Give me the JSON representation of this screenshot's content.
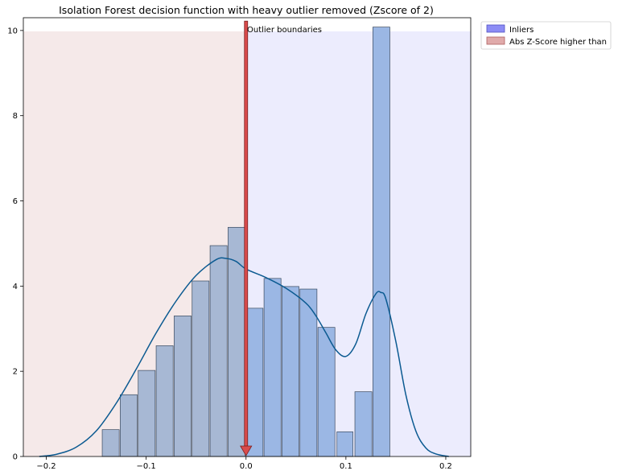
{
  "chart_data": {
    "type": "bar",
    "title": "Isolation Forest decision function with heavy outlier removed (Zscore of 2)",
    "xlabel": "",
    "ylabel": "",
    "xlim": [
      -0.223,
      0.225
    ],
    "ylim": [
      0,
      10.3
    ],
    "xticks": [
      -0.2,
      -0.1,
      0.0,
      0.1,
      0.2
    ],
    "xtick_labels": [
      "−0.2",
      "−0.1",
      "0.0",
      "0.1",
      "0.2"
    ],
    "yticks": [
      0,
      2,
      4,
      6,
      8,
      10
    ],
    "ytick_labels": [
      "0",
      "2",
      "4",
      "6",
      "8",
      "10"
    ],
    "grid": false,
    "legend_position": "outside-top-right",
    "regions": [
      {
        "name": "outlier-region",
        "x0": -0.223,
        "x1": 0.0,
        "color": "#f5e9e9"
      },
      {
        "name": "inlier-region",
        "x0": 0.0,
        "x1": 0.225,
        "color": "#ececfd"
      }
    ],
    "bars": [
      {
        "x0": -0.144,
        "x1": -0.127,
        "value": 0.63,
        "group": "outlier"
      },
      {
        "x0": -0.126,
        "x1": -0.109,
        "value": 1.45,
        "group": "outlier"
      },
      {
        "x0": -0.108,
        "x1": -0.091,
        "value": 2.02,
        "group": "outlier"
      },
      {
        "x0": -0.09,
        "x1": -0.073,
        "value": 2.6,
        "group": "outlier"
      },
      {
        "x0": -0.072,
        "x1": -0.055,
        "value": 3.3,
        "group": "outlier"
      },
      {
        "x0": -0.054,
        "x1": -0.037,
        "value": 4.12,
        "group": "outlier"
      },
      {
        "x0": -0.036,
        "x1": -0.019,
        "value": 4.95,
        "group": "outlier"
      },
      {
        "x0": -0.018,
        "x1": -0.001,
        "value": 5.38,
        "group": "outlier"
      },
      {
        "x0": 0.0,
        "x1": 0.017,
        "value": 3.48,
        "group": "inlier"
      },
      {
        "x0": 0.018,
        "x1": 0.035,
        "value": 4.18,
        "group": "inlier"
      },
      {
        "x0": 0.036,
        "x1": 0.053,
        "value": 3.99,
        "group": "inlier"
      },
      {
        "x0": 0.054,
        "x1": 0.071,
        "value": 3.93,
        "group": "inlier"
      },
      {
        "x0": 0.072,
        "x1": 0.089,
        "value": 3.03,
        "group": "inlier"
      },
      {
        "x0": 0.091,
        "x1": 0.107,
        "value": 0.58,
        "group": "inlier"
      },
      {
        "x0": 0.109,
        "x1": 0.126,
        "value": 1.52,
        "group": "inlier"
      },
      {
        "x0": 0.127,
        "x1": 0.144,
        "value": 10.08,
        "group": "inlier"
      }
    ],
    "bar_colors": {
      "outlier": "#a7b8d4",
      "inlier": "#9bb7e4",
      "edge": "#3a4a5e"
    },
    "kde": {
      "color": "#0b5a91",
      "x": [
        -0.207,
        -0.19,
        -0.17,
        -0.15,
        -0.13,
        -0.11,
        -0.09,
        -0.07,
        -0.05,
        -0.03,
        -0.02,
        -0.01,
        0.0,
        0.02,
        0.04,
        0.06,
        0.07,
        0.08,
        0.09,
        0.1,
        0.11,
        0.12,
        0.13,
        0.135,
        0.14,
        0.15,
        0.16,
        0.17,
        0.18,
        0.19,
        0.203
      ],
      "y": [
        0.0,
        0.05,
        0.22,
        0.6,
        1.25,
        2.05,
        2.9,
        3.65,
        4.25,
        4.62,
        4.65,
        4.58,
        4.4,
        4.2,
        3.95,
        3.6,
        3.3,
        2.9,
        2.5,
        2.35,
        2.65,
        3.35,
        3.82,
        3.85,
        3.7,
        2.7,
        1.45,
        0.6,
        0.2,
        0.06,
        0.0
      ]
    },
    "outlier_boundary": {
      "x": 0.0,
      "label": "Outlier boundaries",
      "color": "#d94b4b",
      "edge": "#7a2020"
    },
    "legend": [
      {
        "label": "Inliers",
        "color": "#8c8cf5",
        "edge": "#5050c0"
      },
      {
        "label": "Abs Z-Score higher than",
        "color": "#e0aaaa",
        "edge": "#b06060"
      }
    ]
  }
}
